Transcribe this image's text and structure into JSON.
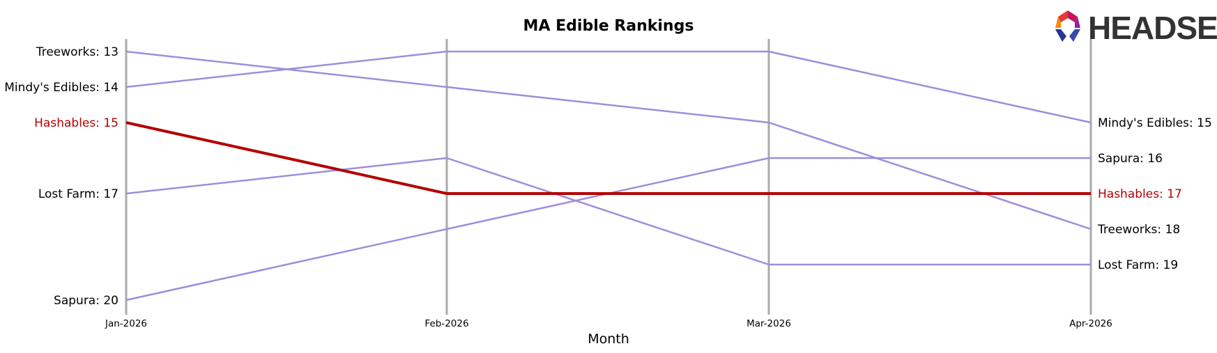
{
  "chart_data": {
    "type": "line",
    "title": "MA Edible Rankings",
    "xlabel": "Month",
    "ylabel": "",
    "categories": [
      "Jan-2026",
      "Feb-2026",
      "Mar-2026",
      "Apr-2026"
    ],
    "y_inverted": true,
    "ylim": [
      12.8,
      20.3
    ],
    "grid": false,
    "series": [
      {
        "name": "Treeworks",
        "values": [
          13,
          14,
          15,
          18
        ],
        "color": "#9b8fdb",
        "highlight": false
      },
      {
        "name": "Mindy's Edibles",
        "values": [
          14,
          13,
          13,
          15
        ],
        "color": "#9b8fdb",
        "highlight": false
      },
      {
        "name": "Hashables",
        "values": [
          15,
          17,
          17,
          17
        ],
        "color": "#b30000",
        "highlight": true
      },
      {
        "name": "Lost Farm",
        "values": [
          17,
          16,
          19,
          19
        ],
        "color": "#9b8fdb",
        "highlight": false
      },
      {
        "name": "Sapura",
        "values": [
          20,
          18,
          16,
          16
        ],
        "color": "#9b8fdb",
        "highlight": false
      }
    ],
    "start_labels": [
      {
        "text": "Treeworks: 13",
        "value": 13,
        "highlight": false
      },
      {
        "text": "Mindy's Edibles: 14",
        "value": 14,
        "highlight": false
      },
      {
        "text": "Hashables: 15",
        "value": 15,
        "highlight": true
      },
      {
        "text": "Lost Farm: 17",
        "value": 17,
        "highlight": false
      },
      {
        "text": "Sapura: 20",
        "value": 20,
        "highlight": false
      }
    ],
    "end_labels": [
      {
        "text": "Mindy's Edibles: 15",
        "value": 15,
        "highlight": false
      },
      {
        "text": "Sapura: 16",
        "value": 16,
        "highlight": false
      },
      {
        "text": "Hashables: 17",
        "value": 17,
        "highlight": true
      },
      {
        "text": "Treeworks: 18",
        "value": 18,
        "highlight": false
      },
      {
        "text": "Lost Farm: 19",
        "value": 19,
        "highlight": false
      }
    ]
  },
  "logo": {
    "text": "HEADSET",
    "icon": "headset-logo-icon"
  },
  "colors": {
    "highlight": "#b30000",
    "series": "#9b8fdb",
    "axis_line": "#aaaaaa",
    "text": "#000000"
  }
}
